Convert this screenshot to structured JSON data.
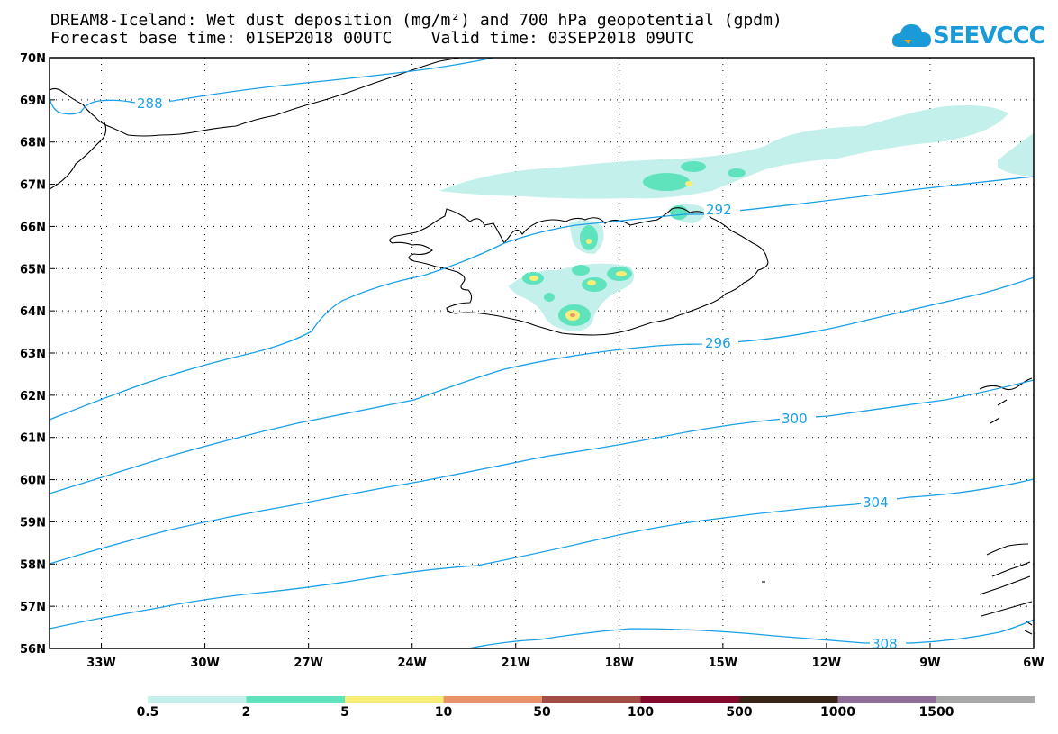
{
  "title": {
    "line1": "DREAM8-Iceland: Wet dust deposition (mg/m²) and 700 hPa geopotential (gpdm)",
    "line2": "Forecast base time: 01SEP2018 00UTC    Valid time: 03SEP2018 09UTC"
  },
  "logo": {
    "text": "SEEVCCC",
    "icon": "cloud-icon",
    "color": "#1a9ad6"
  },
  "map": {
    "lat_range": [
      56,
      70
    ],
    "lon_range": [
      -34.5,
      -6
    ],
    "lat_ticks": [
      "56N",
      "57N",
      "58N",
      "59N",
      "60N",
      "61N",
      "62N",
      "63N",
      "64N",
      "65N",
      "66N",
      "67N",
      "68N",
      "69N",
      "70N"
    ],
    "lon_ticks": [
      "33W",
      "30W",
      "27W",
      "24W",
      "21W",
      "18W",
      "15W",
      "12W",
      "9W",
      "6W"
    ],
    "contour_color": "#1aa0e6",
    "contour_labels": [
      "288",
      "292",
      "296",
      "300",
      "304",
      "308"
    ]
  },
  "colorbar": {
    "labels": [
      "0.5",
      "2",
      "5",
      "10",
      "50",
      "100",
      "500",
      "1000",
      "1500"
    ],
    "colors": [
      "#c3f0ea",
      "#5ee3bd",
      "#f7ee77",
      "#eb9368",
      "#a24e46",
      "#820a2c",
      "#3a2418",
      "#8f6f9a",
      "#a8a8a8"
    ]
  }
}
